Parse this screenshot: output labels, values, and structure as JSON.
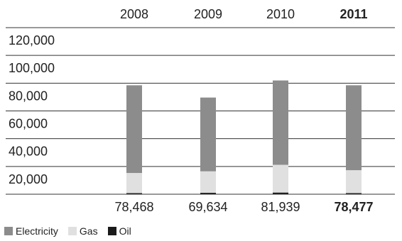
{
  "chart_data": {
    "type": "bar",
    "stacked": true,
    "categories": [
      "2008",
      "2009",
      "2010",
      "2011"
    ],
    "highlight_category": "2011",
    "totals": [
      "78,468",
      "69,634",
      "81,939",
      "78,477"
    ],
    "y_ticks": [
      "120,000",
      "100,000",
      "80,000",
      "60,000",
      "40,000",
      "20,000"
    ],
    "ylim": [
      0,
      120000
    ],
    "grid": true,
    "legend_position": "bottom-left",
    "series": [
      {
        "name": "Oil",
        "color": "#1a1a1a",
        "values": [
          800,
          1000,
          1200,
          800
        ]
      },
      {
        "name": "Gas",
        "color": "#e0e0e0",
        "values": [
          14500,
          15500,
          20000,
          16500
        ]
      },
      {
        "name": "Electricity",
        "color": "#8c8c8c",
        "values": [
          63168,
          53134,
          60739,
          61177
        ]
      }
    ],
    "legend_order": [
      "Electricity",
      "Gas",
      "Oil"
    ],
    "title": "",
    "xlabel": "",
    "ylabel": ""
  }
}
